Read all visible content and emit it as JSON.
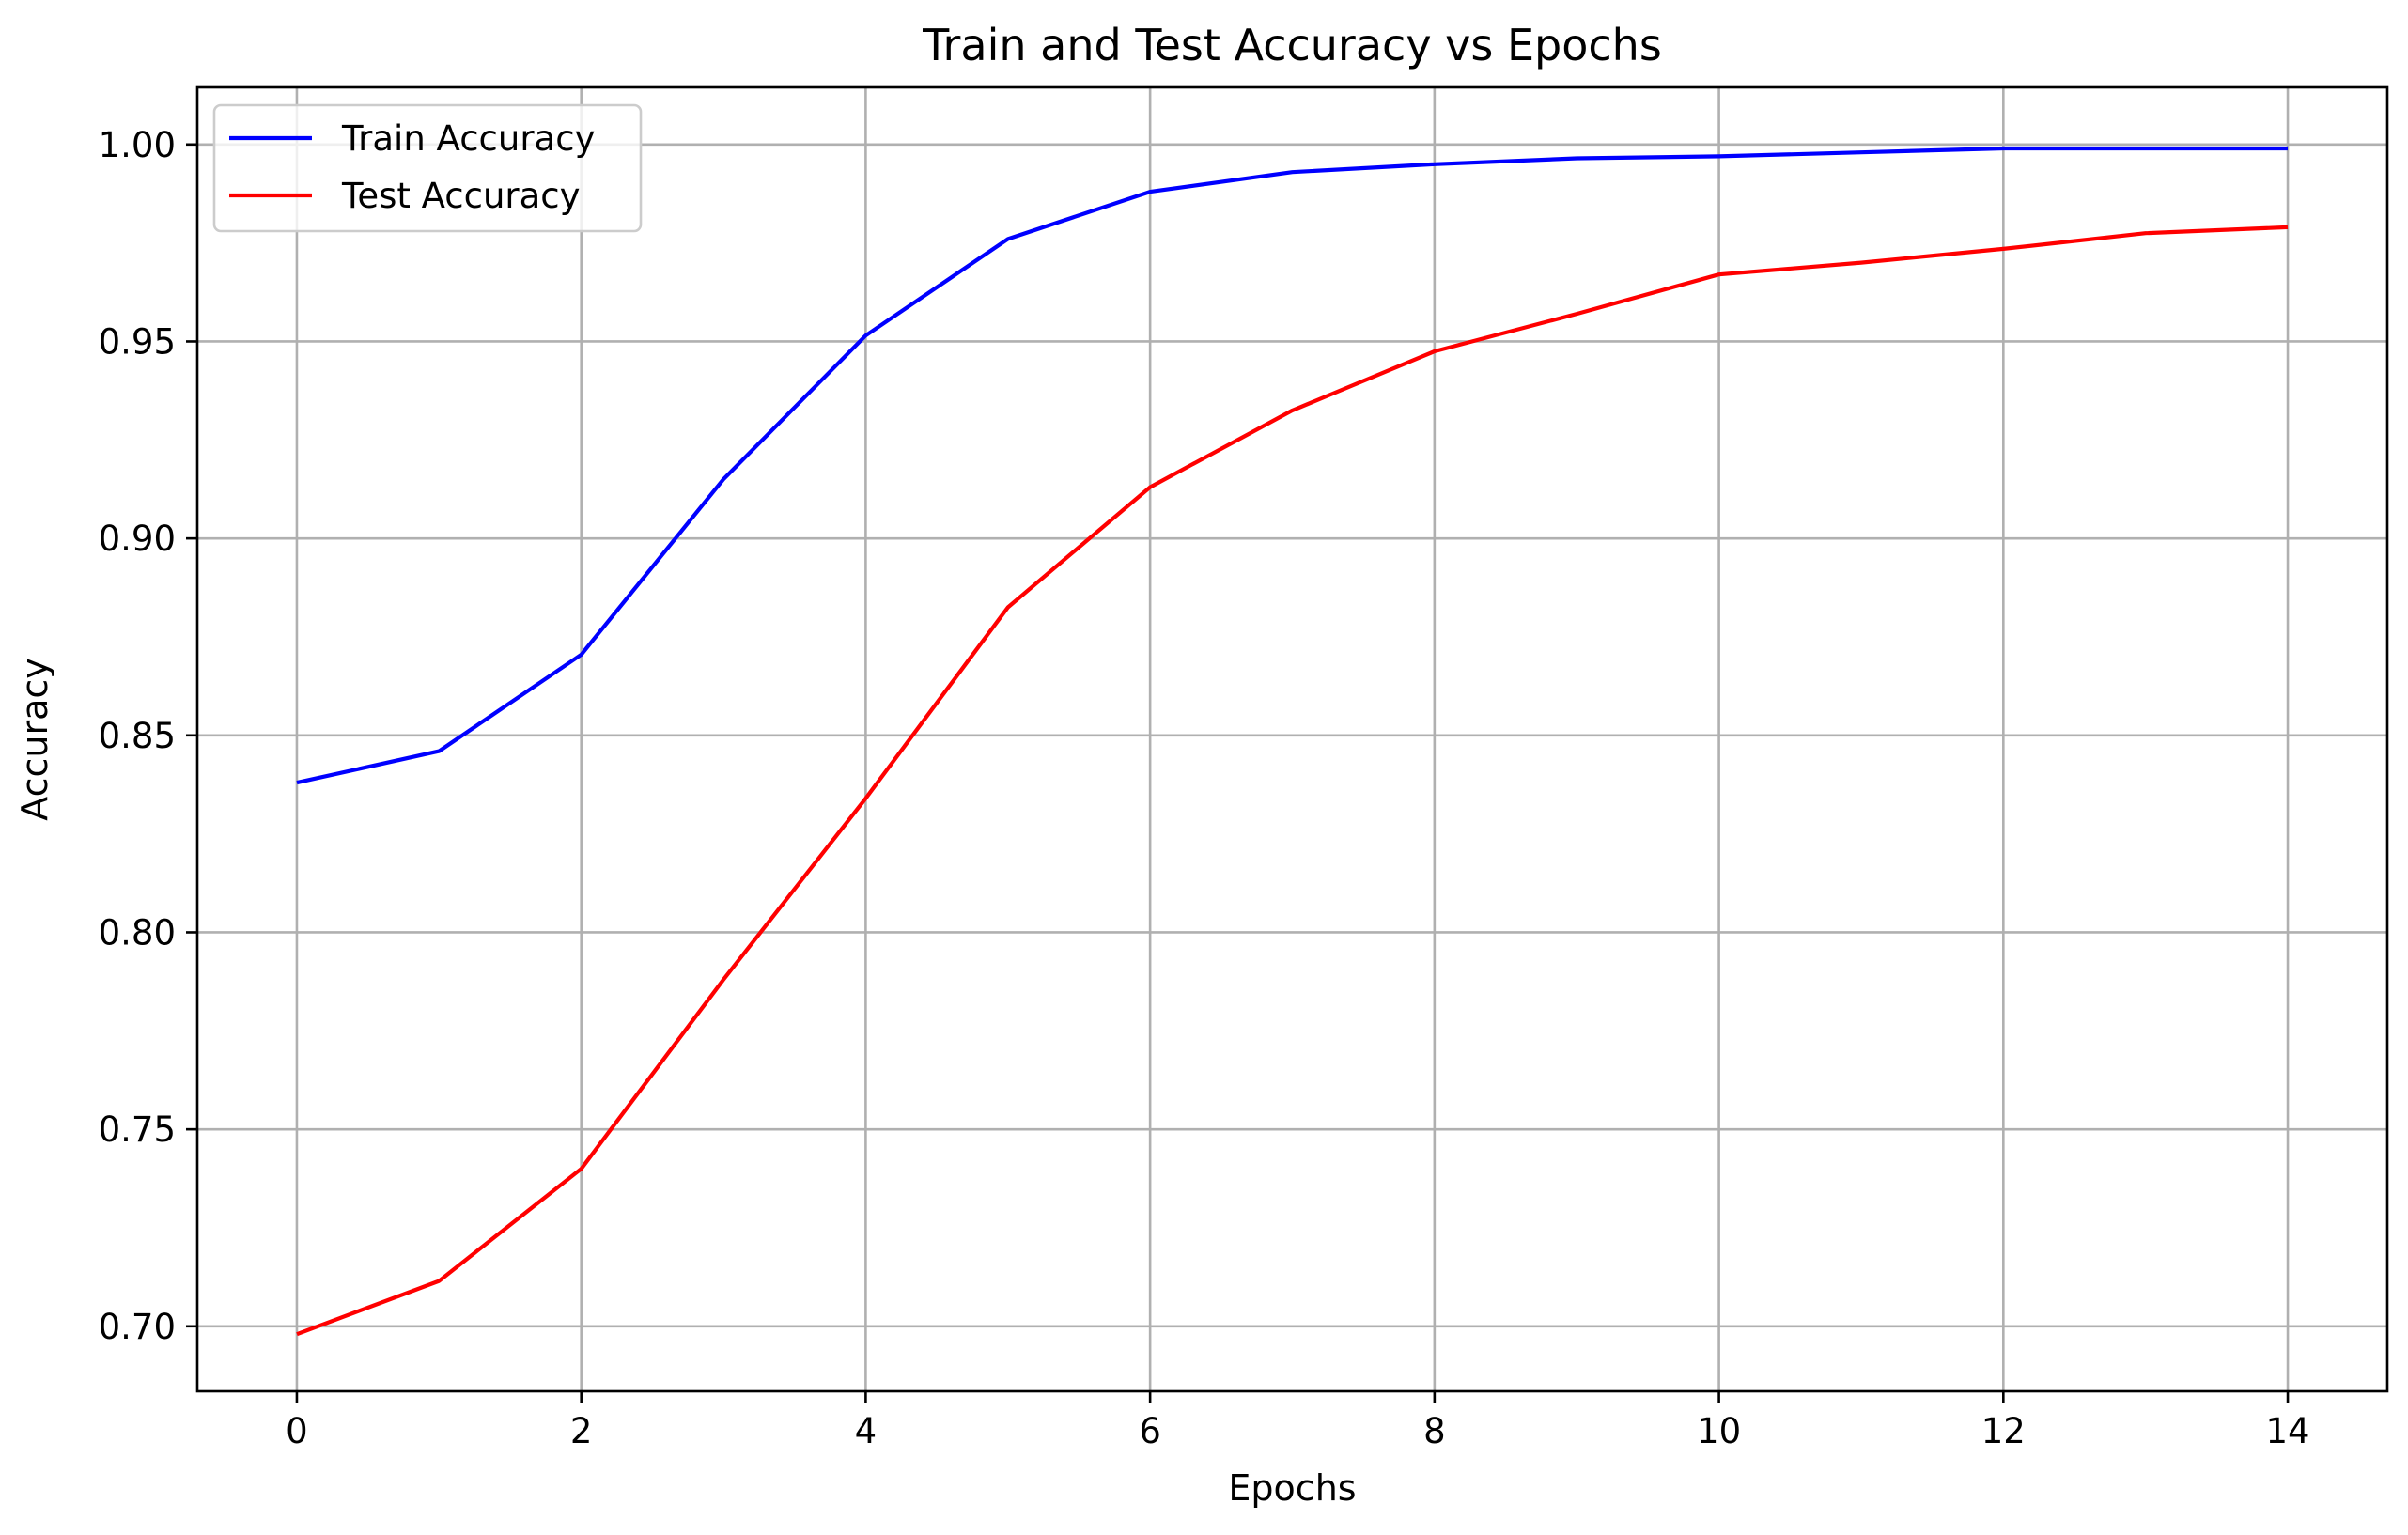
{
  "chart_data": {
    "type": "line",
    "title": "Train and Test Accuracy vs Epochs",
    "xlabel": "Epochs",
    "ylabel": "Accuracy",
    "x": [
      0,
      1,
      2,
      3,
      4,
      5,
      6,
      7,
      8,
      9,
      10,
      11,
      12,
      13,
      14
    ],
    "xlim": [
      -0.7,
      14.7
    ],
    "ylim": [
      0.6835,
      1.0145
    ],
    "xticks": [
      0,
      2,
      4,
      6,
      8,
      10,
      12,
      14
    ],
    "xtick_labels": [
      "0",
      "2",
      "4",
      "6",
      "8",
      "10",
      "12",
      "14"
    ],
    "yticks": [
      0.7,
      0.75,
      0.8,
      0.85,
      0.9,
      0.95,
      1.0
    ],
    "ytick_labels": [
      "0.70",
      "0.75",
      "0.80",
      "0.85",
      "0.90",
      "0.95",
      "1.00"
    ],
    "grid": true,
    "legend_position": "top-left",
    "series": [
      {
        "name": "Train Accuracy",
        "color": "#0000ff",
        "values": [
          0.838,
          0.846,
          0.8705,
          0.915,
          0.9515,
          0.976,
          0.988,
          0.993,
          0.995,
          0.9965,
          0.997,
          0.998,
          0.999,
          0.999,
          0.999
        ]
      },
      {
        "name": "Test Accuracy",
        "color": "#ff0000",
        "values": [
          0.698,
          0.7115,
          0.74,
          0.788,
          0.834,
          0.8825,
          0.913,
          0.9325,
          0.9475,
          0.957,
          0.967,
          0.97,
          0.9735,
          0.9775,
          0.979
        ]
      }
    ]
  }
}
